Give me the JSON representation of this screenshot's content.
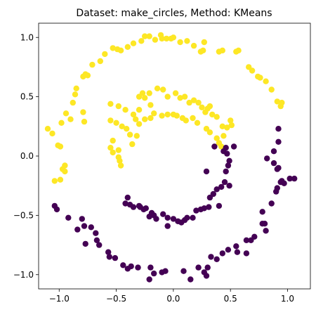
{
  "chart_data": {
    "type": "scatter",
    "title": "Dataset: make_circles, Method: KMeans",
    "xlabel": "",
    "ylabel": "",
    "xlim": [
      -1.18,
      1.2
    ],
    "ylim": [
      -1.12,
      1.12
    ],
    "grid": false,
    "x_ticks": [
      -1.0,
      -0.5,
      0.0,
      0.5,
      1.0
    ],
    "x_tick_labels": [
      "−1.0",
      "−0.5",
      "0.0",
      "0.5",
      "1.0"
    ],
    "y_ticks": [
      -1.0,
      -0.5,
      0.0,
      0.5,
      1.0
    ],
    "y_tick_labels": [
      "−1.0",
      "−0.5",
      "0.0",
      "0.5",
      "1.0"
    ],
    "colors": {
      "yellow": "#fde725",
      "purple": "#440154"
    },
    "series": [
      {
        "color": "#fde725",
        "points": [
          [
            -1.1,
            0.23
          ],
          [
            -1.06,
            0.19
          ],
          [
            -1.04,
            -0.21
          ],
          [
            -0.99,
            -0.2
          ],
          [
            -1.01,
            0.09
          ],
          [
            -0.99,
            0.08
          ],
          [
            -0.98,
            0.28
          ],
          [
            -0.97,
            -0.11
          ],
          [
            -0.95,
            -0.13
          ],
          [
            -0.95,
            -0.08
          ],
          [
            -0.94,
            0.36
          ],
          [
            -0.9,
            0.31
          ],
          [
            -0.88,
            0.45
          ],
          [
            -0.86,
            0.52
          ],
          [
            -0.85,
            0.57
          ],
          [
            -0.79,
            0.67
          ],
          [
            -0.77,
            0.69
          ],
          [
            -0.75,
            0.68
          ],
          [
            -0.71,
            0.77
          ],
          [
            -0.64,
            0.8
          ],
          [
            -0.6,
            0.86
          ],
          [
            -0.53,
            0.91
          ],
          [
            -0.49,
            0.9
          ],
          [
            -0.46,
            0.89
          ],
          [
            -0.4,
            0.92
          ],
          [
            -0.35,
            0.95
          ],
          [
            -0.28,
            0.97
          ],
          [
            -0.25,
            1.01
          ],
          [
            -0.21,
            1.01
          ],
          [
            -0.16,
            0.98
          ],
          [
            -0.11,
            1.02
          ],
          [
            -0.1,
            0.99
          ],
          [
            -0.06,
            0.99
          ],
          [
            -0.02,
            0.99
          ],
          [
            0.0,
            1.0
          ],
          [
            0.06,
            0.96
          ],
          [
            0.12,
            0.97
          ],
          [
            0.18,
            0.93
          ],
          [
            0.24,
            0.88
          ],
          [
            0.26,
            0.89
          ],
          [
            0.27,
            0.96
          ],
          [
            0.4,
            0.88
          ],
          [
            0.43,
            0.89
          ],
          [
            0.55,
            0.88
          ],
          [
            0.57,
            0.89
          ],
          [
            0.66,
            0.75
          ],
          [
            0.69,
            0.72
          ],
          [
            0.74,
            0.67
          ],
          [
            0.76,
            0.66
          ],
          [
            0.81,
            0.63
          ],
          [
            0.86,
            0.56
          ],
          [
            0.91,
            0.46
          ],
          [
            0.94,
            0.42
          ],
          [
            0.95,
            0.45
          ],
          [
            -0.79,
            0.37
          ],
          [
            -0.78,
            0.29
          ],
          [
            -0.55,
            0.44
          ],
          [
            -0.48,
            0.42
          ],
          [
            -0.42,
            0.39
          ],
          [
            -0.35,
            0.35
          ],
          [
            -0.33,
            0.31
          ],
          [
            -0.3,
            0.39
          ],
          [
            -0.3,
            0.27
          ],
          [
            -0.25,
            0.31
          ],
          [
            -0.2,
            0.43
          ],
          [
            -0.2,
            0.32
          ],
          [
            -0.17,
            0.36
          ],
          [
            -0.1,
            0.34
          ],
          [
            -0.05,
            0.35
          ],
          [
            0.0,
            0.35
          ],
          [
            0.03,
            0.34
          ],
          [
            0.08,
            0.32
          ],
          [
            0.11,
            0.3
          ],
          [
            0.17,
            0.32
          ],
          [
            0.21,
            0.28
          ],
          [
            0.29,
            0.23
          ],
          [
            0.32,
            0.2
          ],
          [
            0.38,
            0.15
          ],
          [
            0.4,
            0.11
          ],
          [
            0.42,
            0.08
          ],
          [
            -0.55,
            0.3
          ],
          [
            -0.5,
            0.28
          ],
          [
            -0.45,
            0.25
          ],
          [
            -0.41,
            0.23
          ],
          [
            -0.38,
            0.18
          ],
          [
            -0.36,
            0.1
          ],
          [
            -0.32,
            0.17
          ],
          [
            -0.53,
            0.13
          ],
          [
            -0.55,
            0.07
          ],
          [
            -0.53,
            0.03
          ],
          [
            -0.48,
            0.05
          ],
          [
            -0.48,
            -0.01
          ],
          [
            -0.47,
            -0.04
          ],
          [
            -0.46,
            -0.08
          ],
          [
            -0.3,
            0.5
          ],
          [
            -0.27,
            0.53
          ],
          [
            -0.25,
            0.49
          ],
          [
            -0.21,
            0.53
          ],
          [
            -0.14,
            0.57
          ],
          [
            -0.09,
            0.56
          ],
          [
            -0.05,
            0.5
          ],
          [
            0.02,
            0.53
          ],
          [
            0.06,
            0.49
          ],
          [
            0.1,
            0.5
          ],
          [
            0.14,
            0.45
          ],
          [
            0.18,
            0.47
          ],
          [
            0.22,
            0.45
          ],
          [
            0.25,
            0.41
          ],
          [
            0.28,
            0.37
          ],
          [
            0.3,
            0.4
          ],
          [
            0.32,
            0.42
          ],
          [
            0.34,
            0.35
          ],
          [
            0.38,
            0.33
          ],
          [
            0.43,
            0.25
          ],
          [
            0.44,
            0.17
          ],
          [
            0.47,
            0.24
          ],
          [
            0.5,
            0.3
          ],
          [
            0.51,
            0.26
          ]
        ]
      },
      {
        "color": "#440154",
        "points": [
          [
            -1.04,
            -0.42
          ],
          [
            -1.02,
            -0.45
          ],
          [
            -0.92,
            -0.52
          ],
          [
            -0.84,
            -0.62
          ],
          [
            -0.8,
            -0.53
          ],
          [
            -0.78,
            -0.59
          ],
          [
            -0.77,
            -0.74
          ],
          [
            -0.72,
            -0.6
          ],
          [
            -0.68,
            -0.65
          ],
          [
            -0.67,
            -0.71
          ],
          [
            -0.65,
            -0.75
          ],
          [
            -0.57,
            -0.81
          ],
          [
            -0.56,
            -0.85
          ],
          [
            -0.51,
            -0.86
          ],
          [
            -0.44,
            -0.92
          ],
          [
            -0.4,
            -0.95
          ],
          [
            -0.37,
            -0.93
          ],
          [
            -0.31,
            -0.94
          ],
          [
            -0.21,
            -1.04
          ],
          [
            -0.2,
            -0.94
          ],
          [
            -0.17,
            -0.99
          ],
          [
            -0.1,
            -0.98
          ],
          [
            -0.07,
            -0.97
          ],
          [
            0.09,
            -0.97
          ],
          [
            0.15,
            -1.04
          ],
          [
            0.22,
            -0.94
          ],
          [
            0.27,
            -0.98
          ],
          [
            0.29,
            -1.01
          ],
          [
            0.3,
            -0.94
          ],
          [
            0.33,
            -0.85
          ],
          [
            0.38,
            -0.87
          ],
          [
            0.43,
            -0.82
          ],
          [
            0.48,
            -0.79
          ],
          [
            0.55,
            -0.76
          ],
          [
            0.56,
            -0.81
          ],
          [
            0.64,
            -0.71
          ],
          [
            0.64,
            -0.82
          ],
          [
            0.68,
            -0.71
          ],
          [
            0.71,
            -0.68
          ],
          [
            0.78,
            -0.57
          ],
          [
            0.78,
            -0.47
          ],
          [
            0.8,
            -0.57
          ],
          [
            0.81,
            -0.63
          ],
          [
            0.86,
            -0.4
          ],
          [
            0.9,
            -0.3
          ],
          [
            0.91,
            -0.27
          ],
          [
            0.94,
            -0.22
          ],
          [
            0.95,
            -0.21
          ],
          [
            0.97,
            -0.23
          ],
          [
            1.02,
            -0.19
          ],
          [
            1.06,
            -0.19
          ],
          [
            0.92,
            -0.1
          ],
          [
            0.91,
            -0.11
          ],
          [
            0.88,
            -0.06
          ],
          [
            0.88,
            0.04
          ],
          [
            0.92,
            0.12
          ],
          [
            0.92,
            0.23
          ],
          [
            0.82,
            -0.02
          ],
          [
            -0.4,
            -0.35
          ],
          [
            -0.42,
            -0.4
          ],
          [
            -0.38,
            -0.41
          ],
          [
            -0.35,
            -0.43
          ],
          [
            -0.3,
            -0.42
          ],
          [
            -0.29,
            -0.43
          ],
          [
            -0.26,
            -0.45
          ],
          [
            -0.24,
            -0.44
          ],
          [
            -0.21,
            -0.51
          ],
          [
            -0.19,
            -0.48
          ],
          [
            -0.17,
            -0.5
          ],
          [
            -0.15,
            -0.53
          ],
          [
            -0.09,
            -0.49
          ],
          [
            -0.05,
            -0.52
          ],
          [
            -0.05,
            -0.59
          ],
          [
            0.0,
            -0.53
          ],
          [
            0.04,
            -0.55
          ],
          [
            0.07,
            -0.56
          ],
          [
            0.1,
            -0.54
          ],
          [
            0.12,
            -0.52
          ],
          [
            0.17,
            -0.52
          ],
          [
            0.2,
            -0.46
          ],
          [
            0.24,
            -0.45
          ],
          [
            0.27,
            -0.44
          ],
          [
            0.31,
            -0.43
          ],
          [
            0.32,
            -0.35
          ],
          [
            0.35,
            -0.32
          ],
          [
            0.38,
            -0.28
          ],
          [
            0.42,
            -0.26
          ],
          [
            0.45,
            -0.22
          ],
          [
            0.49,
            -0.25
          ],
          [
            0.46,
            -0.13
          ],
          [
            0.48,
            -0.08
          ],
          [
            0.49,
            -0.04
          ],
          [
            0.44,
            0.04
          ],
          [
            0.47,
            0.02
          ],
          [
            0.46,
            0.07
          ],
          [
            0.36,
            0.08
          ],
          [
            0.29,
            -0.13
          ],
          [
            0.53,
            0.08
          ],
          [
            0.4,
            -0.42
          ]
        ]
      }
    ]
  }
}
